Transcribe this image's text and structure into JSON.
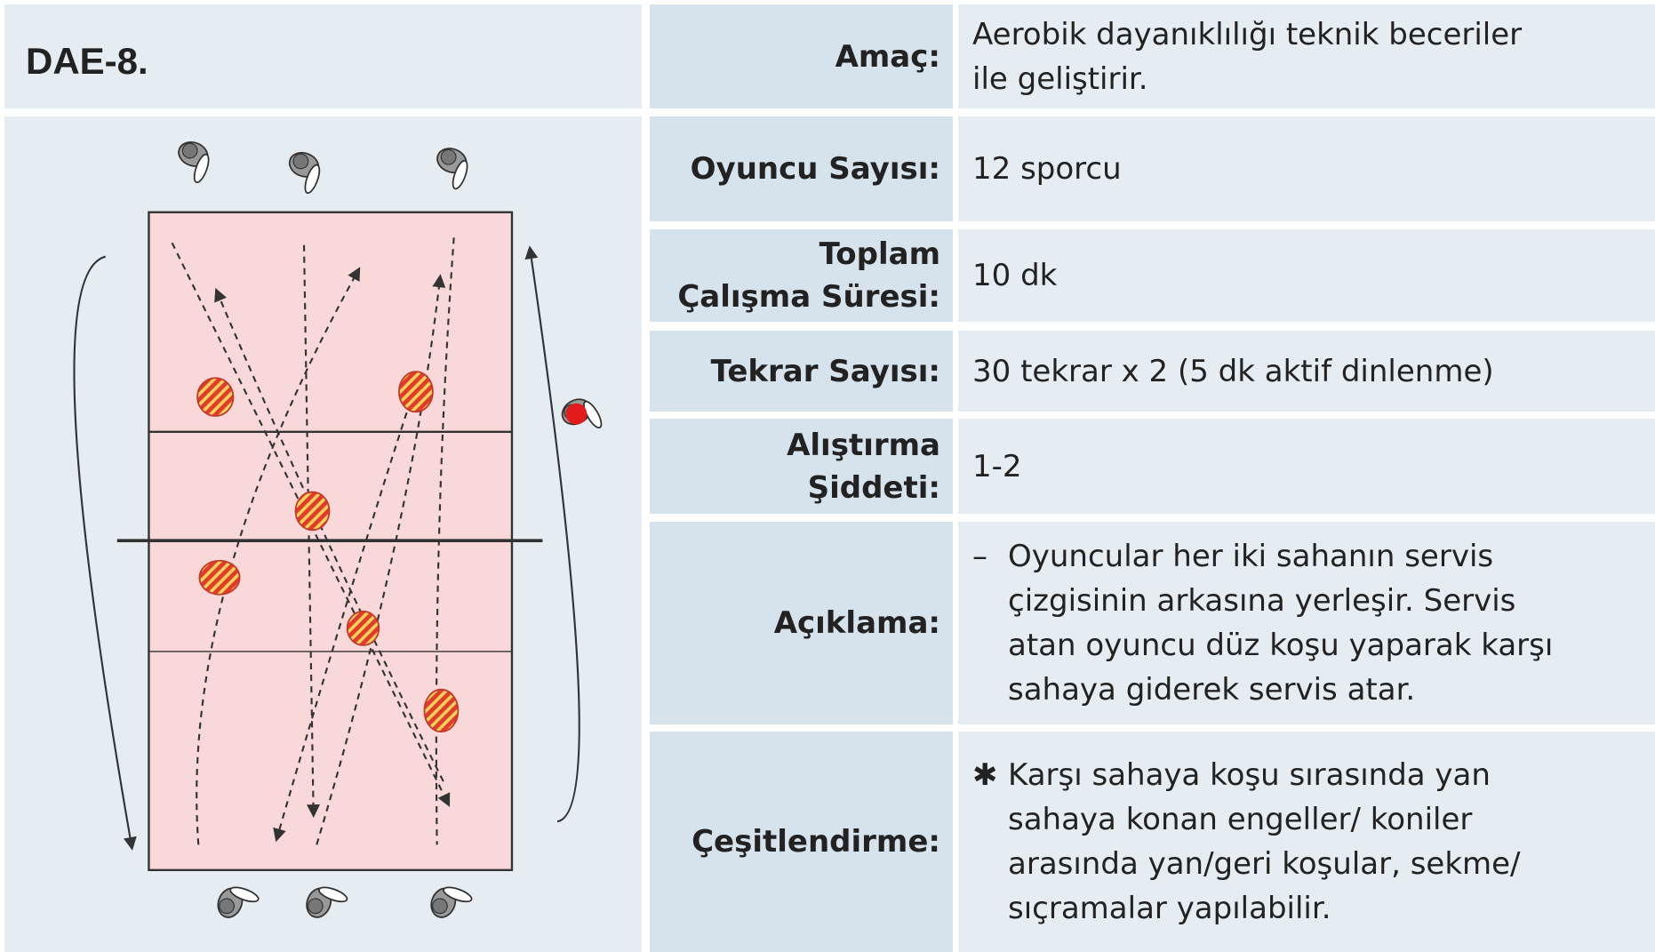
{
  "header": {
    "title": "DAE-8."
  },
  "table": {
    "rows": [
      {
        "label": [
          "Amaç:"
        ],
        "value": [
          "Aerobik dayanıklılığı teknik beceriler",
          "ile geliştirir."
        ]
      },
      {
        "label": [
          "Oyuncu Sayısı:"
        ],
        "value": [
          "12 sporcu"
        ]
      },
      {
        "label": [
          "Toplam",
          "Çalışma Süresi:"
        ],
        "value": [
          "10 dk"
        ]
      },
      {
        "label": [
          "Tekrar Sayısı:"
        ],
        "value": [
          "30 tekrar x 2 (5 dk aktif dinlenme)"
        ]
      },
      {
        "label": [
          "Alıştırma",
          "Şiddeti:"
        ],
        "value": [
          "1-2"
        ]
      },
      {
        "label": [
          "Açıklama:"
        ],
        "marker": "–",
        "value": [
          "Oyuncular her iki sahanın servis",
          "çizgisinin arkasına yerleşir. Servis",
          "atan oyuncu düz koşu yaparak karşı",
          "sahaya giderek servis atar."
        ]
      },
      {
        "label": [
          "Çeşitlendirme:"
        ],
        "marker": "✱",
        "value": [
          "Karşı sahaya koşu sırasında yan",
          "sahaya konan engeller/ koniler",
          "arasında yan/geri koşular, sekme/",
          "sıçramalar yapılabilir."
        ]
      }
    ]
  }
}
